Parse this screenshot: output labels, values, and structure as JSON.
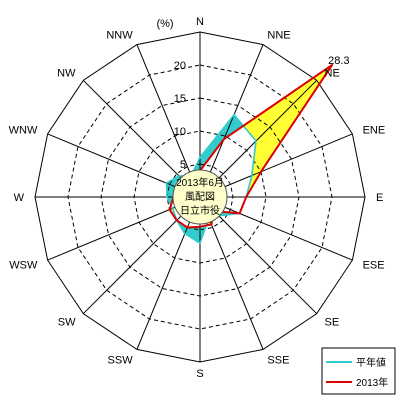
{
  "chart_data": {
    "type": "radar",
    "title_lines": [
      "2013年6月",
      "風配図",
      "日立市役"
    ],
    "unit_label": "(%)",
    "directions": [
      "N",
      "NNE",
      "NE",
      "ENE",
      "E",
      "ESE",
      "SE",
      "SSE",
      "S",
      "SSW",
      "SW",
      "WSW",
      "W",
      "WNW",
      "NW",
      "NNW"
    ],
    "radial_ticks": [
      0,
      5,
      10,
      15,
      20
    ],
    "r_max": 25,
    "series": [
      {
        "name": "平年値",
        "color": "#33cccc",
        "values": [
          6.0,
          13.5,
          12.0,
          8.5,
          7.0,
          6.5,
          4.0,
          3.5,
          7.0,
          6.0,
          5.0,
          4.5,
          5.0,
          5.5,
          4.5,
          3.5
        ]
      },
      {
        "name": "2013年",
        "color": "#dd0000",
        "values": [
          4.0,
          9.5,
          28.3,
          10.0,
          7.0,
          6.5,
          3.0,
          4.5,
          4.5,
          5.0,
          5.0,
          5.0,
          4.0,
          4.0,
          4.0,
          2.5
        ]
      }
    ],
    "peak_label": "28.3",
    "fill_colors": {
      "climatology_excess": "#33cccc",
      "year_excess": "#ffff33"
    },
    "legend_placement": "bottom-right"
  }
}
